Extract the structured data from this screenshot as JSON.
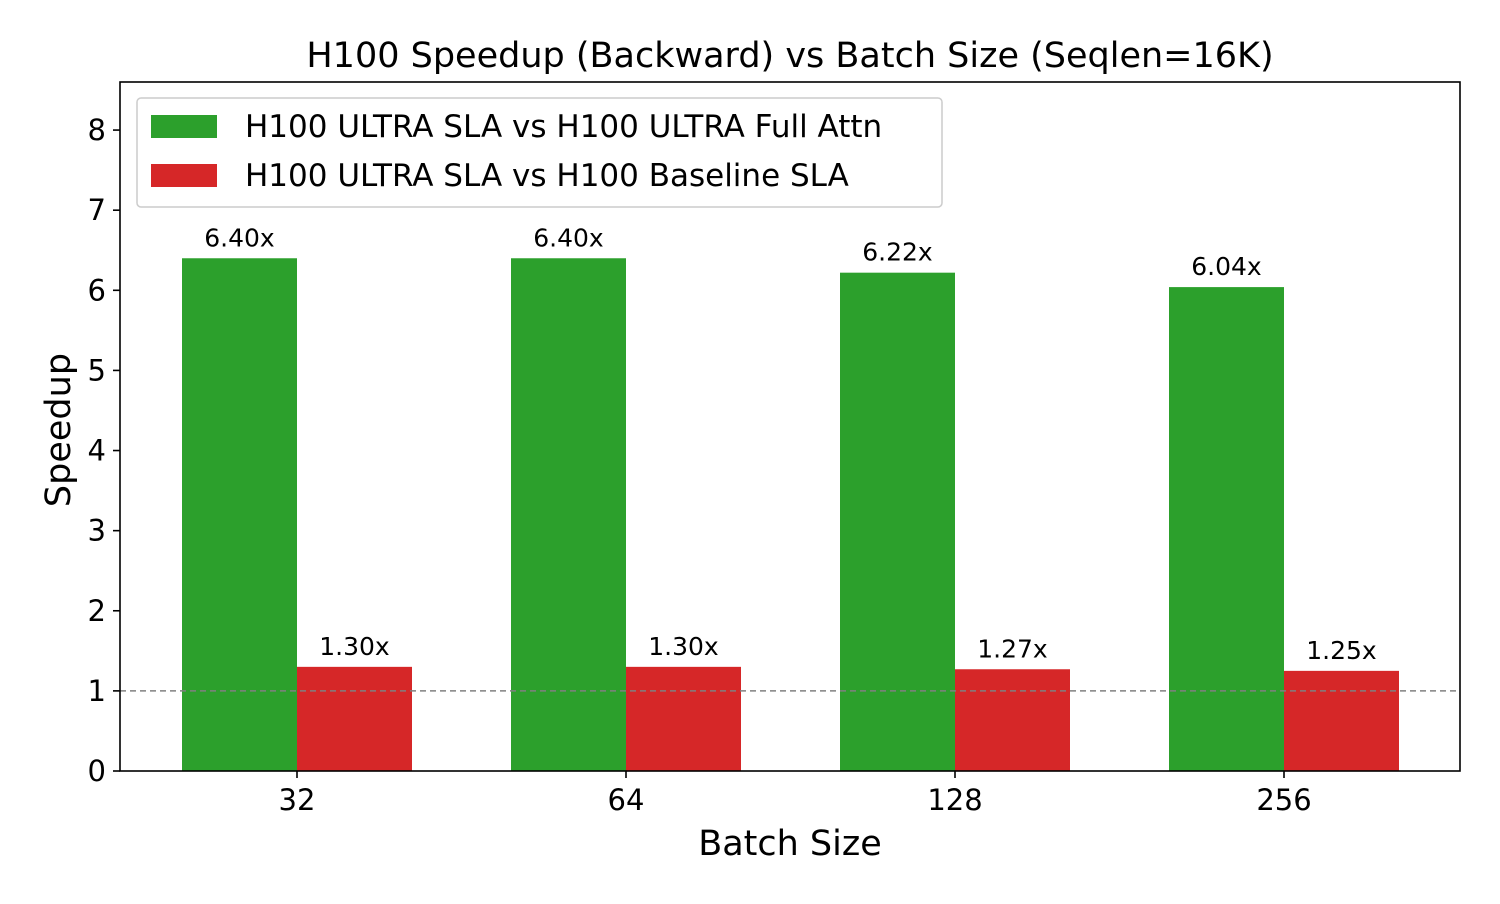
{
  "chart_data": {
    "type": "bar",
    "title": "H100 Speedup (Backward) vs Batch Size (Seqlen=16K)",
    "xlabel": "Batch Size",
    "ylabel": "Speedup",
    "categories": [
      "32",
      "64",
      "128",
      "256"
    ],
    "series": [
      {
        "name": "H100 ULTRA SLA vs H100 ULTRA Full Attn",
        "values": [
          6.4,
          6.4,
          6.22,
          6.04
        ],
        "labels": [
          "6.40x",
          "6.40x",
          "6.22x",
          "6.04x"
        ],
        "color": "#2ca02c"
      },
      {
        "name": "H100 ULTRA SLA vs H100 Baseline SLA",
        "values": [
          1.3,
          1.3,
          1.27,
          1.25
        ],
        "labels": [
          "1.30x",
          "1.30x",
          "1.27x",
          "1.25x"
        ],
        "color": "#d62728"
      }
    ],
    "ylim": [
      0,
      8.6
    ],
    "yticks": [
      0,
      1,
      2,
      3,
      4,
      5,
      6,
      7,
      8
    ],
    "reference_line": {
      "y": 1,
      "style": "dashed",
      "color": "#808080"
    },
    "grid": false,
    "legend_position": "top-left"
  }
}
